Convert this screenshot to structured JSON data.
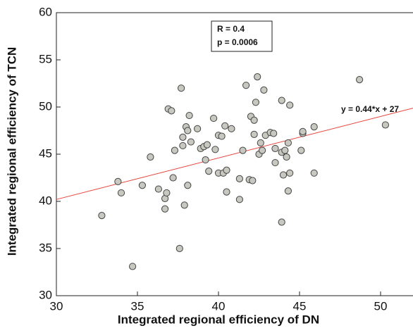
{
  "chart_data": {
    "type": "scatter",
    "x_label": "Integrated regional efficiency of DN",
    "y_label": "Integrated regional efficiency of TCN",
    "stats": [
      "R = 0.4",
      "p = 0.0006"
    ],
    "fit_line": {
      "label": "y = 0.44*x + 27",
      "slope": 0.44,
      "intercept": 27,
      "color": "#e8453c"
    },
    "color": "#c8c8c0",
    "xlim": [
      30,
      52
    ],
    "ylim": [
      30,
      60
    ],
    "xticks": [
      30,
      35,
      40,
      45,
      50
    ],
    "yticks": [
      30,
      35,
      40,
      45,
      50,
      55,
      60
    ],
    "x": [
      32.8,
      33.8,
      34.0,
      34.7,
      35.3,
      35.8,
      36.3,
      36.7,
      36.7,
      36.8,
      36.9,
      37.1,
      37.3,
      37.2,
      37.6,
      37.7,
      37.8,
      37.8,
      37.9,
      38.0,
      38.1,
      38.1,
      38.2,
      38.3,
      38.7,
      38.9,
      39.1,
      39.3,
      39.2,
      39.4,
      39.7,
      39.8,
      40.0,
      40.0,
      40.2,
      40.3,
      40.4,
      40.5,
      40.5,
      40.8,
      41.3,
      41.3,
      41.5,
      41.7,
      41.9,
      42.0,
      42.1,
      42.2,
      42.2,
      42.3,
      42.4,
      42.5,
      42.6,
      42.7,
      42.8,
      42.9,
      43.2,
      43.4,
      43.5,
      43.5,
      43.9,
      43.9,
      43.9,
      44.0,
      44.1,
      44.2,
      44.3,
      44.3,
      44.4,
      44.4,
      45.1,
      45.2,
      45.2,
      45.9,
      45.9,
      48.7,
      50.3
    ],
    "values": [
      38.5,
      42.1,
      40.9,
      33.1,
      41.7,
      44.7,
      41.3,
      40.3,
      39.2,
      40.9,
      49.8,
      49.6,
      45.4,
      42.5,
      35.0,
      52.0,
      46.8,
      45.9,
      39.6,
      47.9,
      47.5,
      41.7,
      49.1,
      46.3,
      47.7,
      45.6,
      45.8,
      46.0,
      44.4,
      43.2,
      48.8,
      45.5,
      43.0,
      47.0,
      46.9,
      43.0,
      48.0,
      43.3,
      41.0,
      47.7,
      42.4,
      40.2,
      45.4,
      52.3,
      42.3,
      49.0,
      42.2,
      47.1,
      48.6,
      50.5,
      53.2,
      45.0,
      46.2,
      45.4,
      51.8,
      47.0,
      47.3,
      47.2,
      44.1,
      45.6,
      50.7,
      45.2,
      37.8,
      42.8,
      45.4,
      44.7,
      41.1,
      46.2,
      50.2,
      43.0,
      45.4,
      47.2,
      47.4,
      47.9,
      43.0,
      52.9,
      48.1
    ]
  }
}
